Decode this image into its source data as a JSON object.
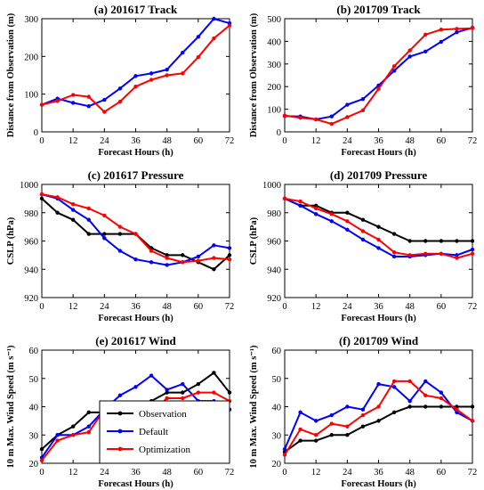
{
  "figure": {
    "background": "#ffffff"
  },
  "legend_items": [
    {
      "label": "Observation",
      "color": "#000000"
    },
    {
      "label": "Default",
      "color": "#0000ff"
    },
    {
      "label": "Optimization",
      "color": "#ff0000"
    }
  ],
  "chart_data": [
    {
      "id": "a",
      "type": "line",
      "title": "(a) 201617 Track",
      "xlabel": "Forecast Hours (h)",
      "ylabel": "Distance from Observation (m)",
      "xlim": [
        0,
        72
      ],
      "ylim": [
        0,
        300
      ],
      "xticks": [
        0,
        12,
        24,
        36,
        48,
        60,
        72
      ],
      "yticks": [
        0,
        100,
        200,
        300
      ],
      "series": [
        {
          "name": "Default",
          "color": "#0000ff",
          "x": [
            0,
            6,
            12,
            18,
            24,
            30,
            36,
            42,
            48,
            54,
            60,
            66,
            72
          ],
          "y": [
            72,
            88,
            77,
            68,
            85,
            115,
            148,
            155,
            165,
            210,
            252,
            300,
            288
          ]
        },
        {
          "name": "Optimization",
          "color": "#ff0000",
          "x": [
            0,
            6,
            12,
            18,
            24,
            30,
            36,
            42,
            48,
            54,
            60,
            66,
            72
          ],
          "y": [
            72,
            82,
            98,
            93,
            53,
            80,
            120,
            138,
            150,
            155,
            198,
            248,
            282
          ]
        }
      ]
    },
    {
      "id": "b",
      "type": "line",
      "title": "(b) 201709 Track",
      "xlabel": "Forecast Hours (h)",
      "ylabel": "Distance from Observation (m)",
      "xlim": [
        0,
        72
      ],
      "ylim": [
        0,
        500
      ],
      "xticks": [
        0,
        12,
        24,
        36,
        48,
        60,
        72
      ],
      "yticks": [
        0,
        100,
        200,
        300,
        400,
        500
      ],
      "series": [
        {
          "name": "Default",
          "color": "#0000ff",
          "x": [
            0,
            6,
            12,
            18,
            24,
            30,
            36,
            42,
            48,
            54,
            60,
            66,
            72
          ],
          "y": [
            70,
            68,
            55,
            68,
            120,
            145,
            205,
            270,
            333,
            355,
            398,
            440,
            460
          ]
        },
        {
          "name": "Optimization",
          "color": "#ff0000",
          "x": [
            0,
            6,
            12,
            18,
            24,
            30,
            36,
            42,
            48,
            54,
            60,
            66,
            72
          ],
          "y": [
            72,
            62,
            55,
            35,
            65,
            95,
            190,
            290,
            360,
            430,
            452,
            455,
            458
          ]
        }
      ]
    },
    {
      "id": "c",
      "type": "line",
      "title": "(c) 201617 Pressure",
      "xlabel": "Forecast Hours (h)",
      "ylabel": "CSLP (hPa)",
      "xlim": [
        0,
        72
      ],
      "ylim": [
        920,
        1000
      ],
      "xticks": [
        0,
        12,
        24,
        36,
        48,
        60,
        72
      ],
      "yticks": [
        920,
        940,
        960,
        980,
        1000
      ],
      "series": [
        {
          "name": "Observation",
          "color": "#000000",
          "x": [
            0,
            6,
            12,
            18,
            24,
            30,
            36,
            42,
            48,
            54,
            60,
            66,
            72
          ],
          "y": [
            990,
            980,
            975,
            965,
            965,
            965,
            965,
            955,
            950,
            950,
            945,
            940,
            950
          ]
        },
        {
          "name": "Default",
          "color": "#0000ff",
          "x": [
            0,
            6,
            12,
            18,
            24,
            30,
            36,
            42,
            48,
            54,
            60,
            66,
            72
          ],
          "y": [
            993,
            990,
            982,
            975,
            962,
            953,
            947,
            945,
            943,
            945,
            949,
            957,
            955
          ]
        },
        {
          "name": "Optimization",
          "color": "#ff0000",
          "x": [
            0,
            6,
            12,
            18,
            24,
            30,
            36,
            42,
            48,
            54,
            60,
            66,
            72
          ],
          "y": [
            993,
            991,
            986,
            983,
            978,
            970,
            965,
            953,
            948,
            945,
            946,
            948,
            947
          ]
        }
      ]
    },
    {
      "id": "d",
      "type": "line",
      "title": "(d) 201709 Pressure",
      "xlabel": "Forecast Hours (h)",
      "ylabel": "CSLP (hPa)",
      "xlim": [
        0,
        72
      ],
      "ylim": [
        920,
        1000
      ],
      "xticks": [
        0,
        12,
        24,
        36,
        48,
        60,
        72
      ],
      "yticks": [
        920,
        940,
        960,
        980,
        1000
      ],
      "series": [
        {
          "name": "Observation",
          "color": "#000000",
          "x": [
            0,
            6,
            12,
            18,
            24,
            30,
            36,
            42,
            48,
            54,
            60,
            66,
            72
          ],
          "y": [
            990,
            985,
            985,
            980,
            980,
            975,
            970,
            965,
            960,
            960,
            960,
            960,
            960
          ]
        },
        {
          "name": "Default",
          "color": "#0000ff",
          "x": [
            0,
            6,
            12,
            18,
            24,
            30,
            36,
            42,
            48,
            54,
            60,
            66,
            72
          ],
          "y": [
            990,
            985,
            979,
            974,
            968,
            961,
            955,
            949,
            949,
            950,
            951,
            950,
            954
          ]
        },
        {
          "name": "Optimization",
          "color": "#ff0000",
          "x": [
            0,
            6,
            12,
            18,
            24,
            30,
            36,
            42,
            48,
            54,
            60,
            66,
            72
          ],
          "y": [
            990,
            988,
            983,
            979,
            974,
            967,
            961,
            952,
            950,
            951,
            951,
            948,
            951
          ]
        }
      ]
    },
    {
      "id": "e",
      "type": "line",
      "title": "(e) 201617 Wind",
      "xlabel": "Forecast Hours (h)",
      "ylabel": "10 m Max. Wind Speed (m s⁻¹)",
      "xlim": [
        0,
        72
      ],
      "ylim": [
        20,
        60
      ],
      "xticks": [
        0,
        12,
        24,
        36,
        48,
        60,
        72
      ],
      "yticks": [
        20,
        30,
        40,
        50,
        60
      ],
      "legend": "bottom-center",
      "series": [
        {
          "name": "Observation",
          "color": "#000000",
          "x": [
            0,
            6,
            12,
            18,
            24,
            30,
            36,
            42,
            48,
            54,
            60,
            66,
            72
          ],
          "y": [
            25,
            30,
            33,
            38,
            38,
            38,
            38,
            42,
            45,
            45,
            48,
            52,
            45
          ]
        },
        {
          "name": "Default",
          "color": "#0000ff",
          "x": [
            0,
            6,
            12,
            18,
            24,
            30,
            36,
            42,
            48,
            54,
            60,
            66,
            72
          ],
          "y": [
            22,
            30,
            30,
            33,
            39,
            44,
            47,
            51,
            46,
            48,
            42,
            42,
            39
          ]
        },
        {
          "name": "Optimization",
          "color": "#ff0000",
          "x": [
            0,
            6,
            12,
            18,
            24,
            30,
            36,
            42,
            48,
            54,
            60,
            66,
            72
          ],
          "y": [
            21,
            28,
            30,
            31,
            39,
            35,
            38,
            38,
            43,
            43,
            45,
            45,
            42
          ]
        }
      ]
    },
    {
      "id": "f",
      "type": "line",
      "title": "(f) 201709 Wind",
      "xlabel": "Forecast Hours (h)",
      "ylabel": "10 m Max. Wind Speed (m s⁻¹)",
      "xlim": [
        0,
        72
      ],
      "ylim": [
        20,
        60
      ],
      "xticks": [
        0,
        12,
        24,
        36,
        48,
        60,
        72
      ],
      "yticks": [
        20,
        30,
        40,
        50,
        60
      ],
      "series": [
        {
          "name": "Observation",
          "color": "#000000",
          "x": [
            0,
            6,
            12,
            18,
            24,
            30,
            36,
            42,
            48,
            54,
            60,
            66,
            72
          ],
          "y": [
            24,
            28,
            28,
            30,
            30,
            33,
            35,
            38,
            40,
            40,
            40,
            40,
            40
          ]
        },
        {
          "name": "Default",
          "color": "#0000ff",
          "x": [
            0,
            6,
            12,
            18,
            24,
            30,
            36,
            42,
            48,
            54,
            60,
            66,
            72
          ],
          "y": [
            25,
            38,
            35,
            37,
            40,
            39,
            48,
            47,
            42,
            49,
            45,
            38,
            35
          ]
        },
        {
          "name": "Optimization",
          "color": "#ff0000",
          "x": [
            0,
            6,
            12,
            18,
            24,
            30,
            36,
            42,
            48,
            54,
            60,
            66,
            72
          ],
          "y": [
            23,
            32,
            30,
            34,
            33,
            37,
            40,
            49,
            49,
            44,
            43,
            39,
            35
          ]
        }
      ]
    }
  ]
}
